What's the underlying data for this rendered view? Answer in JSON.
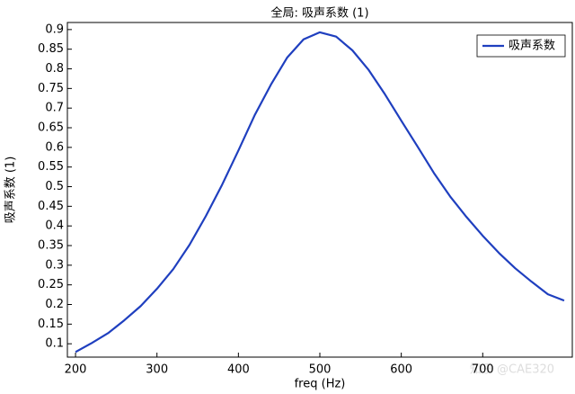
{
  "chart_data": {
    "type": "line",
    "title": "全局: 吸声系数 (1)",
    "x_label": "freq (Hz)",
    "y_label": "吸声系数 (1)",
    "watermark": "知乎 @CAE320",
    "x": [
      200,
      220,
      240,
      260,
      280,
      300,
      320,
      340,
      360,
      380,
      400,
      420,
      440,
      460,
      480,
      500,
      520,
      540,
      560,
      580,
      600,
      620,
      640,
      660,
      680,
      700,
      720,
      740,
      760,
      780,
      800
    ],
    "series": [
      {
        "name": "吸声系数",
        "color": "#1f3fbf",
        "values": [
          0.079,
          0.102,
          0.127,
          0.16,
          0.196,
          0.24,
          0.29,
          0.352,
          0.425,
          0.505,
          0.592,
          0.682,
          0.76,
          0.829,
          0.875,
          0.893,
          0.882,
          0.847,
          0.797,
          0.735,
          0.668,
          0.602,
          0.535,
          0.475,
          0.423,
          0.375,
          0.331,
          0.292,
          0.258,
          0.226,
          0.21
        ]
      }
    ],
    "xlim": [
      190,
      810
    ],
    "ylim": [
      0.066,
      0.918
    ],
    "xticks": [
      200,
      300,
      400,
      500,
      600,
      700
    ],
    "yticks": [
      0.1,
      0.15,
      0.2,
      0.25,
      0.3,
      0.35,
      0.4,
      0.45,
      0.5,
      0.55,
      0.6,
      0.65,
      0.7,
      0.75,
      0.8,
      0.85,
      0.9
    ],
    "legend": "top-right",
    "grid": false
  }
}
